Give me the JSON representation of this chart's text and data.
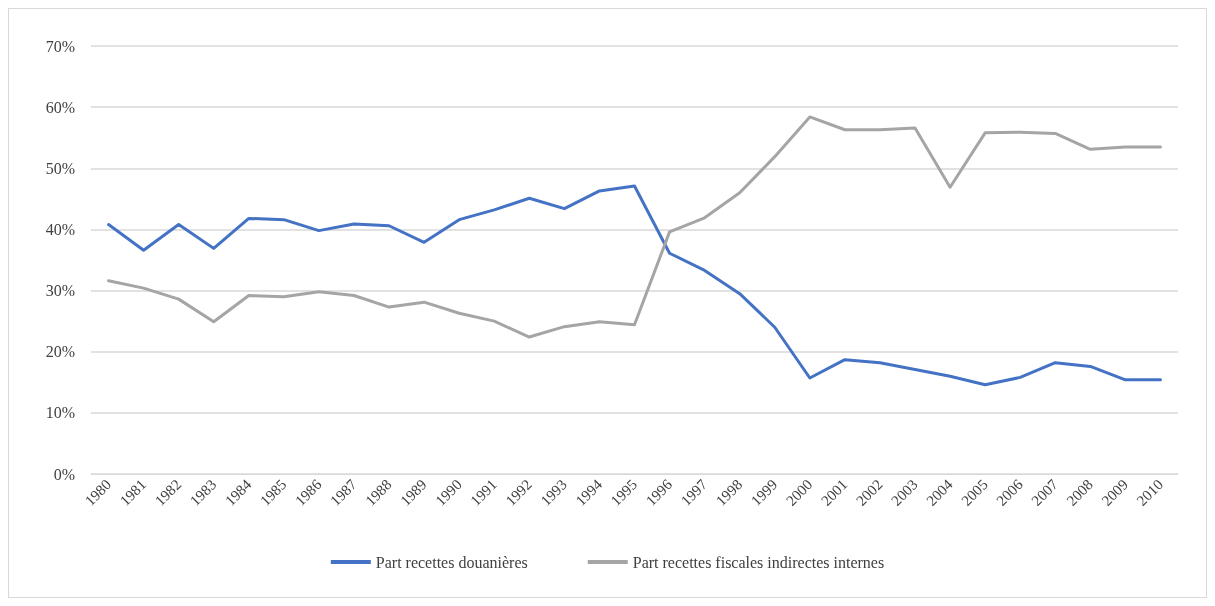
{
  "chart_data": {
    "type": "line",
    "categories": [
      "1980",
      "1981",
      "1982",
      "1983",
      "1984",
      "1985",
      "1986",
      "1987",
      "1988",
      "1989",
      "1990",
      "1991",
      "1992",
      "1993",
      "1994",
      "1995",
      "1996",
      "1997",
      "1998",
      "1999",
      "2000",
      "2001",
      "2002",
      "2003",
      "2004",
      "2005",
      "2006",
      "2007",
      "2008",
      "2009",
      "2010"
    ],
    "series": [
      {
        "name": "Part recettes douanières",
        "color": "#4472c4",
        "values": [
          40.8,
          36.6,
          40.8,
          36.9,
          41.8,
          41.6,
          39.8,
          40.9,
          40.6,
          37.9,
          41.6,
          43.2,
          45.1,
          43.4,
          46.3,
          47.1,
          36.1,
          33.3,
          29.5,
          24.0,
          15.7,
          18.7,
          18.2,
          17.1,
          16.0,
          14.6,
          15.8,
          18.2,
          17.6,
          15.4,
          15.4
        ]
      },
      {
        "name": "Part recettes fiscales indirectes internes",
        "color": "#a5a5a5",
        "values": [
          31.6,
          30.4,
          28.6,
          24.9,
          29.2,
          29.0,
          29.8,
          29.2,
          27.3,
          28.1,
          26.3,
          25.0,
          22.4,
          24.1,
          24.9,
          24.4,
          39.6,
          41.9,
          46.0,
          51.9,
          58.4,
          56.3,
          56.3,
          56.6,
          46.9,
          55.8,
          55.9,
          55.7,
          53.1,
          53.5,
          53.5
        ]
      }
    ],
    "ylim": [
      0,
      70
    ],
    "yticks": [
      {
        "value": 0,
        "label": "0%"
      },
      {
        "value": 10,
        "label": "10%"
      },
      {
        "value": 20,
        "label": "20%"
      },
      {
        "value": 30,
        "label": "30%"
      },
      {
        "value": 40,
        "label": "40%"
      },
      {
        "value": 50,
        "label": "50%"
      },
      {
        "value": 60,
        "label": "60%"
      },
      {
        "value": 70,
        "label": "70%"
      }
    ],
    "grid": "y",
    "legend": "bottom",
    "marker": "none",
    "line_style": "solid"
  }
}
